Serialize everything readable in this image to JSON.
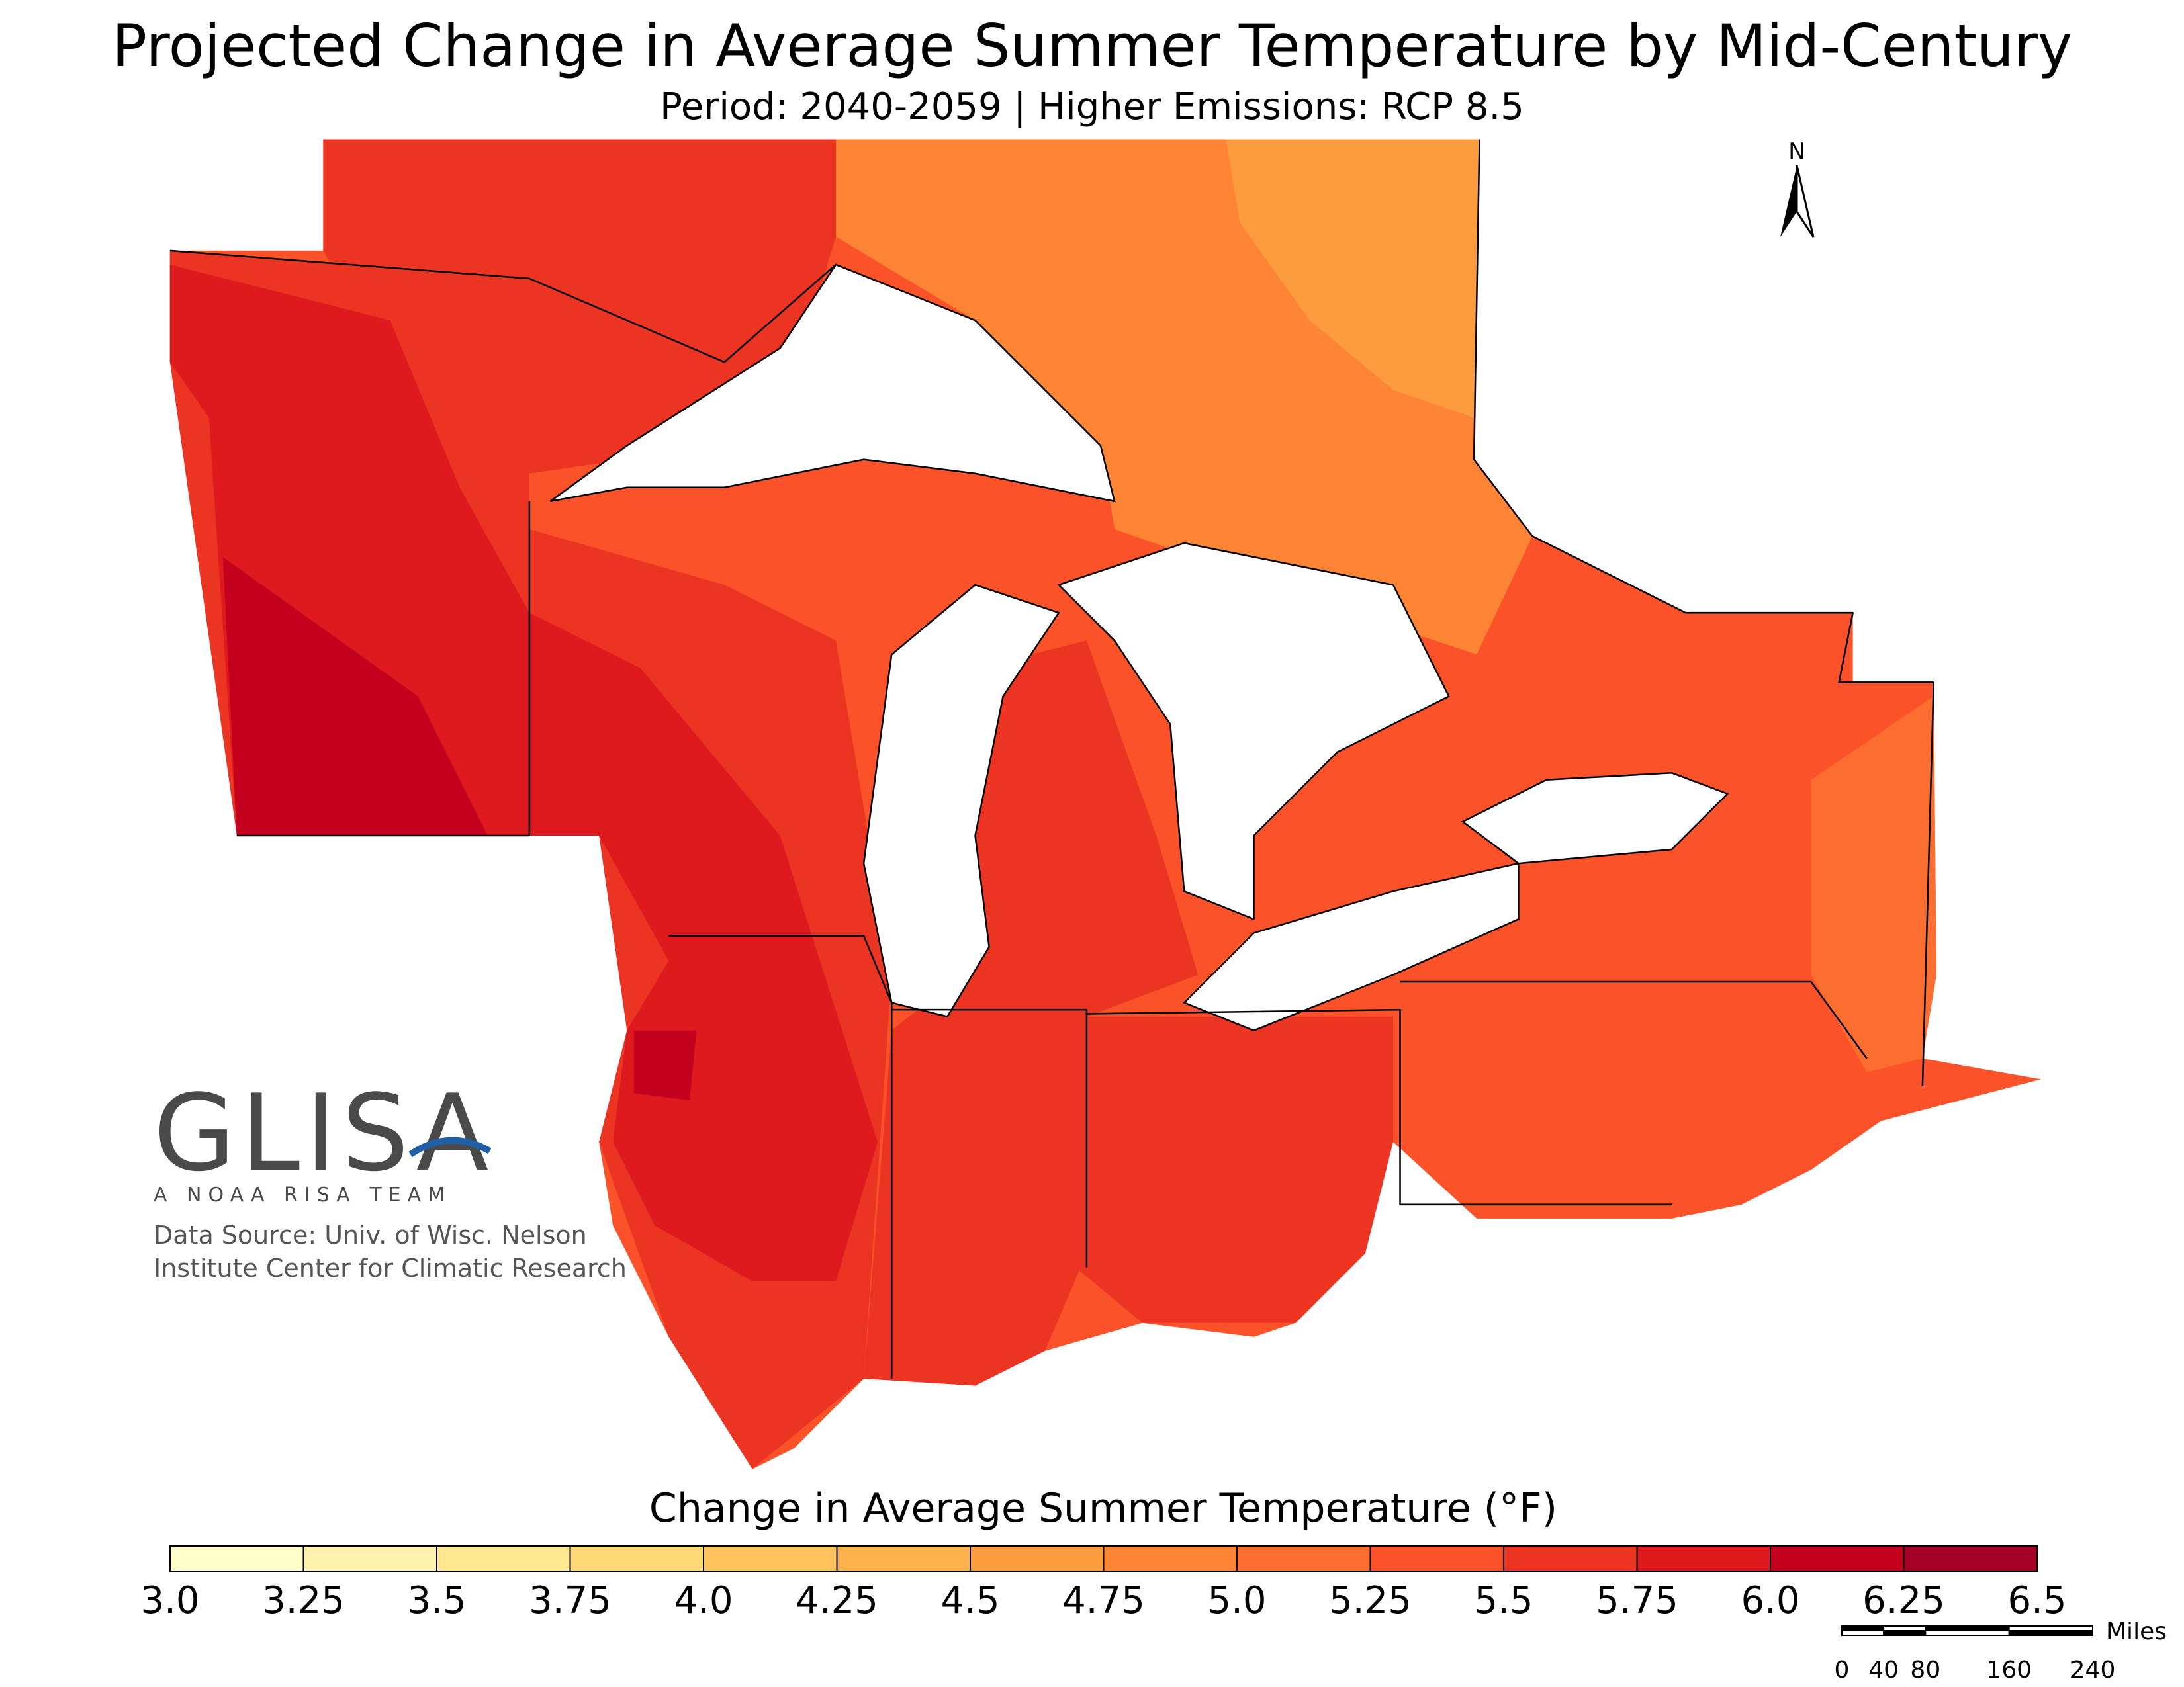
{
  "title": "Projected Change in Average Summer Temperature by Mid-Century",
  "subtitle": "Period: 2040-2059 | Higher Emissions: RCP 8.5",
  "legend": {
    "title": "Change in Average Summer Temperature (°F)",
    "ticks": [
      {
        "value": 3,
        "label": "3.0"
      },
      3.25,
      3.5,
      3.75,
      {
        "value": 4,
        "label": "4.0"
      },
      4.25,
      4.5,
      4.75,
      {
        "value": 5,
        "label": "5.0"
      },
      5.25,
      5.5,
      5.75,
      {
        "value": 6,
        "label": "6.0"
      },
      6.25,
      6.5
    ],
    "colors": [
      "#ffffcc",
      "#fff2ad",
      "#ffe88f",
      "#fed976",
      "#fec35c",
      "#feb24c",
      "#fd9c3f",
      "#fd8435",
      "#fc6d30",
      "#fb5229",
      "#ec3423",
      "#df1a1e",
      "#c4001f",
      "#a50026",
      "#80001f"
    ]
  },
  "logo": {
    "name": "GLISA",
    "tagline": "A NOAA RISA TEAM"
  },
  "source": [
    "Data Source: Univ. of Wisc. Nelson",
    "Institute Center for Climatic Research"
  ],
  "north": "N",
  "scale": {
    "unit": "Miles",
    "ticks": [
      0,
      40,
      80,
      160,
      240
    ]
  }
}
